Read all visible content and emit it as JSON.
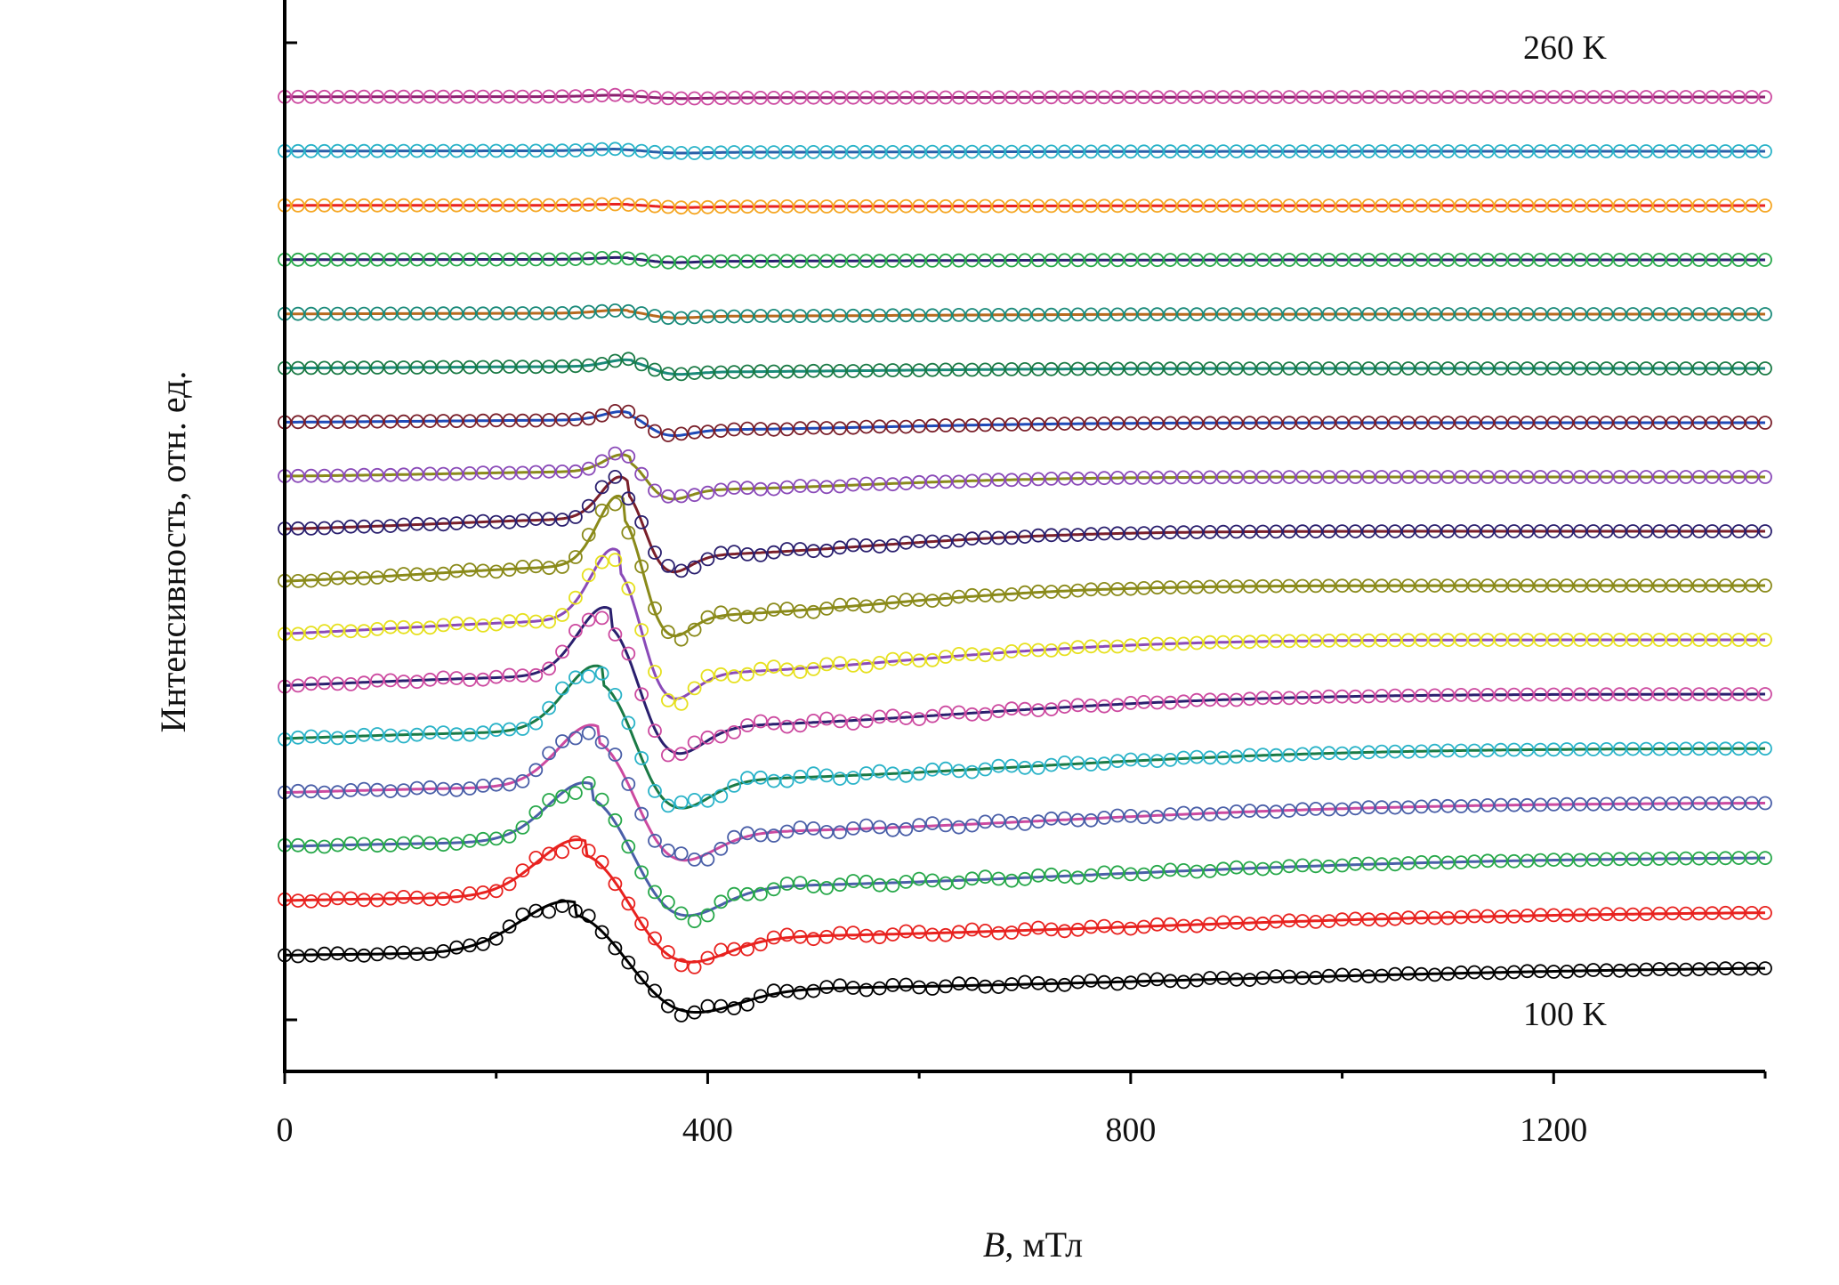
{
  "chart_data": {
    "type": "line",
    "title": "",
    "xlabel_var": "B",
    "xlabel_unit": ", мТл",
    "ylabel": "Интенсивность, отн. ед.",
    "xlim": [
      0,
      1400
    ],
    "x_ticks": [
      0,
      400,
      800,
      1200
    ],
    "x_tick_labels": [
      "0",
      "400",
      "800",
      "1200"
    ],
    "annotations": {
      "top": "260 K",
      "bottom": "100 K"
    },
    "grid": false,
    "legend": "none",
    "offset_step": 1,
    "series": [
      {
        "index": 0,
        "fit_color": "#000000",
        "points_color": "#000000",
        "peak_field": 275,
        "trough_field": 375,
        "peak_amp": 1.6,
        "trough_amp": 1.45
      },
      {
        "index": 1,
        "fit_color": "#e8221f",
        "points_color": "#e8221f",
        "peak_field": 285,
        "trough_field": 370,
        "peak_amp": 1.8,
        "trough_amp": 1.6
      },
      {
        "index": 2,
        "fit_color": "#4a5fa8",
        "points_color": "#27a84a",
        "peak_field": 292,
        "trough_field": 368,
        "peak_amp": 1.9,
        "trough_amp": 1.85
      },
      {
        "index": 3,
        "fit_color": "#cc4aa0",
        "points_color": "#4a5fa8",
        "peak_field": 298,
        "trough_field": 365,
        "peak_amp": 2.0,
        "trough_amp": 1.85
      },
      {
        "index": 4,
        "fit_color": "#1a7a45",
        "points_color": "#2ab3c8",
        "peak_field": 302,
        "trough_field": 362,
        "peak_amp": 2.15,
        "trough_amp": 1.95
      },
      {
        "index": 5,
        "fit_color": "#2a1f6e",
        "points_color": "#cc4aa0",
        "peak_field": 310,
        "trough_field": 360,
        "peak_amp": 2.3,
        "trough_amp": 2.0
      },
      {
        "index": 6,
        "fit_color": "#8a4ab8",
        "points_color": "#e6e01f",
        "peak_field": 318,
        "trough_field": 356,
        "peak_amp": 2.5,
        "trough_amp": 2.1
      },
      {
        "index": 7,
        "fit_color": "#8a8a1a",
        "points_color": "#8a8a1a",
        "peak_field": 322,
        "trough_field": 354,
        "peak_amp": 2.5,
        "trough_amp": 1.9
      },
      {
        "index": 8,
        "fit_color": "#7a1f2a",
        "points_color": "#2a1f6e",
        "peak_field": 325,
        "trough_field": 355,
        "peak_amp": 1.6,
        "trough_amp": 1.5
      },
      {
        "index": 9,
        "fit_color": "#8a8a1a",
        "points_color": "#8a4ab8",
        "peak_field": 328,
        "trough_field": 356,
        "peak_amp": 0.7,
        "trough_amp": 0.8
      },
      {
        "index": 10,
        "fit_color": "#1f4ab8",
        "points_color": "#7a1f2a",
        "peak_field": 328,
        "trough_field": 358,
        "peak_amp": 0.35,
        "trough_amp": 0.45
      },
      {
        "index": 11,
        "fit_color": "#1a8a7a",
        "points_color": "#1a7a45",
        "peak_field": 330,
        "trough_field": 360,
        "peak_amp": 0.25,
        "trough_amp": 0.22
      },
      {
        "index": 12,
        "fit_color": "#b86a1f",
        "points_color": "#1a8a7a",
        "peak_field": 325,
        "trough_field": 360,
        "peak_amp": 0.12,
        "trough_amp": 0.13
      },
      {
        "index": 13,
        "fit_color": "#2a1f6e",
        "points_color": "#27a84a",
        "peak_field": 325,
        "trough_field": 360,
        "peak_amp": 0.07,
        "trough_amp": 0.09
      },
      {
        "index": 14,
        "fit_color": "#e8221f",
        "points_color": "#f5a623",
        "peak_field": 325,
        "trough_field": 370,
        "peak_amp": 0.04,
        "trough_amp": 0.06
      },
      {
        "index": 15,
        "fit_color": "#2a5fa8",
        "points_color": "#2ab3c8",
        "peak_field": 320,
        "trough_field": 365,
        "peak_amp": 0.06,
        "trough_amp": 0.06
      },
      {
        "index": 16,
        "fit_color": "#8a1f6e",
        "points_color": "#cc4aa0",
        "peak_field": 320,
        "trough_field": 365,
        "peak_amp": 0.05,
        "trough_amp": 0.05
      }
    ]
  }
}
